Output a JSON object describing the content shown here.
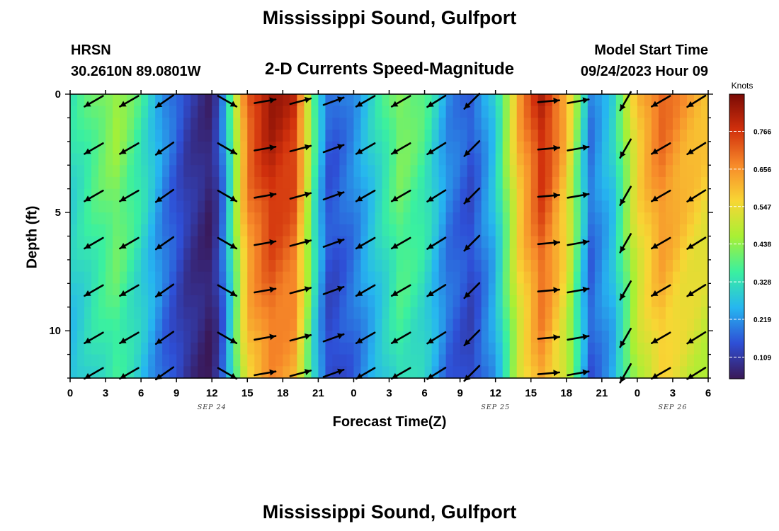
{
  "header": {
    "title": "Mississippi Sound, Gulfport",
    "station_code": "HRSN",
    "station_coords": "30.2610N  89.0801W",
    "subtitle": "2-D Currents Speed-Magnitude",
    "model_start_label": "Model Start Time",
    "model_start_value": "09/24/2023 Hour 09"
  },
  "footer": {
    "title": "Mississippi Sound, Gulfport"
  },
  "chart_data": {
    "type": "heatmap",
    "title": "2-D Currents Speed-Magnitude",
    "xlabel": "Forecast Time(Z)",
    "ylabel": "Depth (ft)",
    "x_tick_labels": [
      "0",
      "3",
      "6",
      "9",
      "12",
      "15",
      "18",
      "21",
      "0",
      "3",
      "6",
      "9",
      "12",
      "15",
      "18",
      "21",
      "0",
      "3",
      "6"
    ],
    "date_labels": [
      {
        "label": "SEP 24",
        "at_tick": 4
      },
      {
        "label": "SEP 25",
        "at_tick": 12
      },
      {
        "label": "SEP 26",
        "at_tick": 17
      }
    ],
    "y_tick_labels": [
      "0",
      "5",
      "10"
    ],
    "y_range_ft": [
      0,
      12
    ],
    "y_reversed": true,
    "x_range_hours": [
      0,
      54
    ],
    "colorbar": {
      "title": "Knots",
      "ticks": [
        "0.766",
        "0.656",
        "0.547",
        "0.438",
        "0.328",
        "0.219",
        "0.109"
      ],
      "range": [
        0.05,
        0.87
      ],
      "colors": [
        "#3a1857",
        "#2e4fd6",
        "#26b6f0",
        "#3af0a0",
        "#a8f034",
        "#f8d634",
        "#f78a2a",
        "#d1300c",
        "#7a0a05"
      ]
    },
    "speed_profile_by_hour": [
      {
        "hour": 0,
        "speed": 0.33
      },
      {
        "hour": 2,
        "speed": 0.4
      },
      {
        "hour": 4,
        "speed": 0.46
      },
      {
        "hour": 6,
        "speed": 0.36
      },
      {
        "hour": 8,
        "speed": 0.22
      },
      {
        "hour": 10,
        "speed": 0.12
      },
      {
        "hour": 12,
        "speed": 0.07
      },
      {
        "hour": 13,
        "speed": 0.22
      },
      {
        "hour": 15,
        "speed": 0.73
      },
      {
        "hour": 17,
        "speed": 0.84
      },
      {
        "hour": 19,
        "speed": 0.79
      },
      {
        "hour": 20,
        "speed": 0.55
      },
      {
        "hour": 21,
        "speed": 0.3
      },
      {
        "hour": 22,
        "speed": 0.16
      },
      {
        "hour": 24,
        "speed": 0.22
      },
      {
        "hour": 26,
        "speed": 0.33
      },
      {
        "hour": 28,
        "speed": 0.44
      },
      {
        "hour": 30,
        "speed": 0.38
      },
      {
        "hour": 32,
        "speed": 0.22
      },
      {
        "hour": 34,
        "speed": 0.16
      },
      {
        "hour": 36,
        "speed": 0.3
      },
      {
        "hour": 38,
        "speed": 0.64
      },
      {
        "hour": 40,
        "speed": 0.82
      },
      {
        "hour": 42,
        "speed": 0.62
      },
      {
        "hour": 44,
        "speed": 0.2
      },
      {
        "hour": 46,
        "speed": 0.31
      },
      {
        "hour": 48,
        "speed": 0.6
      },
      {
        "hour": 50,
        "speed": 0.72
      },
      {
        "hour": 52,
        "speed": 0.65
      },
      {
        "hour": 54,
        "speed": 0.6
      }
    ],
    "arrow_rows_depth_ft": [
      0.3,
      2.3,
      4.3,
      6.3,
      8.3,
      10.3,
      11.8
    ],
    "arrow_columns": [
      {
        "hour": 2,
        "dir_deg": 240
      },
      {
        "hour": 5,
        "dir_deg": 240
      },
      {
        "hour": 8,
        "dir_deg": 235
      },
      {
        "hour": 13.3,
        "dir_deg": 120
      },
      {
        "hour": 16.5,
        "dir_deg": 80
      },
      {
        "hour": 19.5,
        "dir_deg": 75
      },
      {
        "hour": 22.3,
        "dir_deg": 70
      },
      {
        "hour": 25,
        "dir_deg": 240
      },
      {
        "hour": 28,
        "dir_deg": 240
      },
      {
        "hour": 31,
        "dir_deg": 238
      },
      {
        "hour": 34,
        "dir_deg": 225
      },
      {
        "hour": 40.5,
        "dir_deg": 85
      },
      {
        "hour": 43,
        "dir_deg": 80
      },
      {
        "hour": 47,
        "dir_deg": 210
      },
      {
        "hour": 50,
        "dir_deg": 240
      },
      {
        "hour": 53,
        "dir_deg": 238
      }
    ]
  }
}
